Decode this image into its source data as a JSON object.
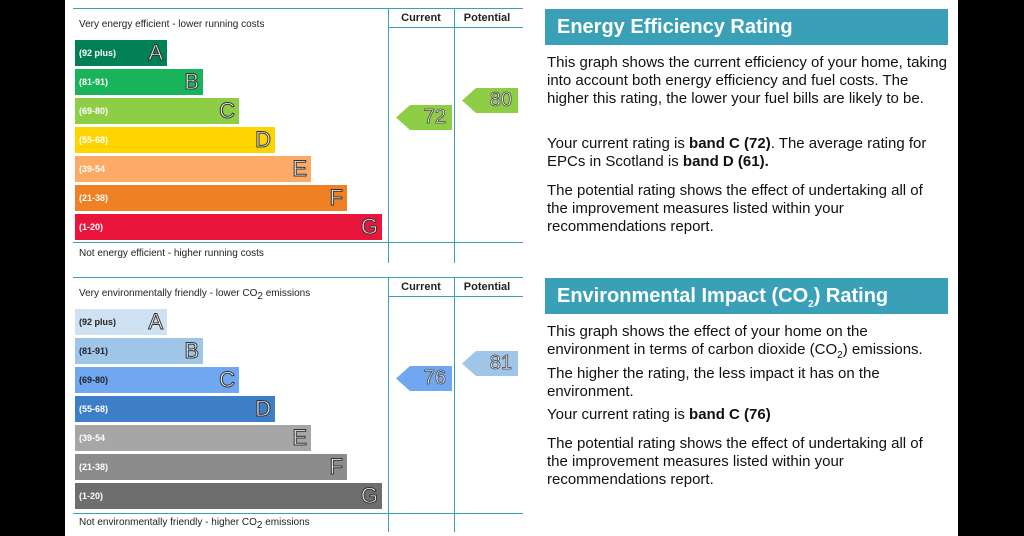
{
  "energy": {
    "top_label": "Very energy efficient - lower running costs",
    "bottom_label": "Not energy efficient - higher running costs",
    "col_current": "Current",
    "col_potential": "Potential",
    "bands": [
      {
        "range": "(92 plus)",
        "letter": "A",
        "color": "#008054"
      },
      {
        "range": "(81-91)",
        "letter": "B",
        "color": "#19b459"
      },
      {
        "range": "(69-80)",
        "letter": "C",
        "color": "#8dce46"
      },
      {
        "range": "(55-68)",
        "letter": "D",
        "color": "#ffd500"
      },
      {
        "range": "(39-54",
        "letter": "E",
        "color": "#fcaa65"
      },
      {
        "range": "(21-38)",
        "letter": "F",
        "color": "#ef8023"
      },
      {
        "range": "(1-20)",
        "letter": "G",
        "color": "#e9153b"
      }
    ],
    "current": "72",
    "potential": "80",
    "arrow_color": "#8dce46"
  },
  "environment": {
    "top_label_pre": "Very environmentally friendly - lower CO",
    "top_label_sub": "2",
    "top_label_post": " emissions",
    "bottom_label_pre": "Not environmentally friendly - higher CO",
    "bottom_label_sub": "2",
    "bottom_label_post": " emissions",
    "col_current": "Current",
    "col_potential": "Potential",
    "bands": [
      {
        "range": "(92 plus)",
        "letter": "A",
        "color": "#cfe2f3"
      },
      {
        "range": "(81-91)",
        "letter": "B",
        "color": "#9fc5e8"
      },
      {
        "range": "(69-80)",
        "letter": "C",
        "color": "#6fa8f0"
      },
      {
        "range": "(55-68)",
        "letter": "D",
        "color": "#3d7ec9"
      },
      {
        "range": "(39-54",
        "letter": "E",
        "color": "#a6a6a6"
      },
      {
        "range": "(21-38)",
        "letter": "F",
        "color": "#8c8c8c"
      },
      {
        "range": "(1-20)",
        "letter": "G",
        "color": "#6e6e6e"
      }
    ],
    "current": "76",
    "potential": "81",
    "current_color": "#6fa8f0",
    "potential_color": "#9fc5e8"
  },
  "eer_panel": {
    "heading": "Energy Efficiency Rating",
    "p1": "This graph shows the current efficiency of your home, taking into account both energy efficiency and fuel costs. The higher this rating, the lower your fuel bills are likely to be.",
    "p2_pre": "Your current rating is ",
    "p2_bold1": "band C (72)",
    "p2_mid": ". The average rating for EPCs in Scotland is ",
    "p2_bold2": "band D (61).",
    "p3": "The potential rating shows the effect of undertaking all of the improvement measures listed within your recommendations report."
  },
  "eir_panel": {
    "heading_pre": "Environmental Impact (CO",
    "heading_sub": "2",
    "heading_post": ") Rating",
    "p1_pre": "This graph shows the effect of your home on the environment in terms of carbon dioxide (CO",
    "p1_sub": "2",
    "p1_post": ") emissions. The higher the rating, the less impact it has on the environment.",
    "p2_pre": "Your current rating is ",
    "p2_bold": "band C (76)",
    "p3": "The potential rating shows the effect of undertaking all of the improvement measures listed within your recommendations report."
  },
  "colors": {
    "accent": "#3aa0b8"
  }
}
